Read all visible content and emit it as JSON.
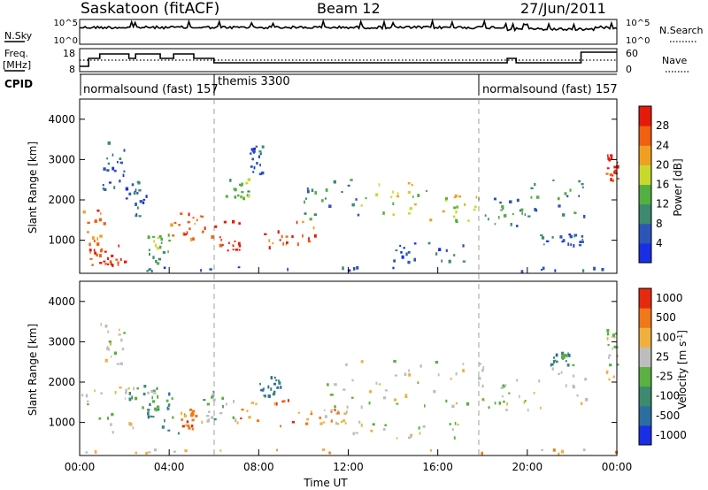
{
  "header": {
    "station": "Saskatoon (fitACF)",
    "beam": "Beam 12",
    "date": "27/Jun/2011"
  },
  "chart_data": [
    {
      "type": "line",
      "panel": "noise",
      "left_label": "N.Sky",
      "right_label": "N.Search",
      "left_ticks": [
        "10^5",
        "10^0"
      ],
      "right_ticks": [
        "10^5",
        "10^0"
      ]
    },
    {
      "type": "line",
      "panel": "frequency",
      "left_label_1": "Freq.",
      "left_label_2": "[MHz]",
      "right_label": "Nave",
      "left_ticks": [
        "18",
        "8"
      ],
      "right_ticks": [
        "60",
        "0"
      ],
      "freq_steps": [
        {
          "t": 0.0,
          "f": 10.0
        },
        {
          "t": 0.4,
          "f": 14.5
        },
        {
          "t": 0.9,
          "f": 17.0
        },
        {
          "t": 2.2,
          "f": 14.5
        },
        {
          "t": 2.5,
          "f": 17.0
        },
        {
          "t": 3.6,
          "f": 14.5
        },
        {
          "t": 4.2,
          "f": 17.0
        },
        {
          "t": 5.1,
          "f": 14.5
        },
        {
          "t": 6.0,
          "f": 12.0
        },
        {
          "t": 19.0,
          "f": 12.0
        },
        {
          "t": 19.1,
          "f": 14.5
        },
        {
          "t": 19.5,
          "f": 12.0
        },
        {
          "t": 22.3,
          "f": 12.0
        },
        {
          "t": 22.4,
          "f": 18.0
        },
        {
          "t": 24.0,
          "f": 18.0
        }
      ]
    },
    {
      "type": "table",
      "panel": "cpid",
      "label": "CPID",
      "segments": [
        {
          "start": 0.0,
          "text": "normalsound (fast) 157"
        },
        {
          "start": 6.0,
          "text": "themis 3300"
        },
        {
          "start": 18.0,
          "text": "normalsound (fast) 157"
        }
      ]
    },
    {
      "type": "heatmap",
      "panel": "power",
      "ylabel": "Slant Range [km]",
      "ylim": [
        180,
        4500
      ],
      "yticks": [
        1000,
        2000,
        3000,
        4000
      ],
      "colorbar_label": "Power [dB]",
      "colorbar_ticks": [
        "4",
        "8",
        "12",
        "16",
        "20",
        "24",
        "28"
      ],
      "colors": [
        "#1a2ee6",
        "#2c55b8",
        "#3d8a6e",
        "#53b040",
        "#c9d92c",
        "#f0a020",
        "#f06010",
        "#e61a0a"
      ],
      "blobs": [
        {
          "t0": 0.0,
          "t1": 1.2,
          "r0": 300,
          "r1": 1800,
          "lvl": 6
        },
        {
          "t0": 0.3,
          "t1": 2.2,
          "r0": 350,
          "r1": 900,
          "lvl": 7
        },
        {
          "t0": 1.0,
          "t1": 2.0,
          "r0": 2200,
          "r1": 3400,
          "lvl": 1
        },
        {
          "t0": 2.0,
          "t1": 3.0,
          "r0": 1500,
          "r1": 2500,
          "lvl": 1
        },
        {
          "t0": 3.0,
          "t1": 4.0,
          "r0": 300,
          "r1": 1200,
          "lvl": 3
        },
        {
          "t0": 4.0,
          "t1": 5.5,
          "r0": 1000,
          "r1": 1700,
          "lvl": 6
        },
        {
          "t0": 5.5,
          "t1": 7.2,
          "r0": 700,
          "r1": 1500,
          "lvl": 7
        },
        {
          "t0": 6.5,
          "t1": 7.5,
          "r0": 2000,
          "r1": 2500,
          "lvl": 3
        },
        {
          "t0": 7.5,
          "t1": 8.2,
          "r0": 2600,
          "r1": 3300,
          "lvl": 1
        },
        {
          "t0": 8.2,
          "t1": 10.5,
          "r0": 800,
          "r1": 1500,
          "lvl": 6
        },
        {
          "t0": 10.0,
          "t1": 12.5,
          "r0": 1500,
          "r1": 2500,
          "lvl": 2
        },
        {
          "t0": 12.5,
          "t1": 15.5,
          "r0": 1600,
          "r1": 2400,
          "lvl": 4
        },
        {
          "t0": 15.5,
          "t1": 18.0,
          "r0": 1400,
          "r1": 2100,
          "lvl": 4
        },
        {
          "t0": 14.0,
          "t1": 17.5,
          "r0": 400,
          "r1": 900,
          "lvl": 1
        },
        {
          "t0": 18.0,
          "t1": 20.0,
          "r0": 1300,
          "r1": 2100,
          "lvl": 2
        },
        {
          "t0": 20.0,
          "t1": 22.5,
          "r0": 1500,
          "r1": 2500,
          "lvl": 2
        },
        {
          "t0": 20.5,
          "t1": 22.5,
          "r0": 800,
          "r1": 1200,
          "lvl": 1
        },
        {
          "t0": 23.5,
          "t1": 24.0,
          "r0": 2400,
          "r1": 3100,
          "lvl": 7
        },
        {
          "t0": 0.0,
          "t1": 24.0,
          "r0": 200,
          "r1": 300,
          "lvl": 1
        }
      ]
    },
    {
      "type": "heatmap",
      "panel": "velocity",
      "ylabel": "Slant Range [km]",
      "ylim": [
        180,
        4500
      ],
      "yticks": [
        1000,
        2000,
        3000,
        4000
      ],
      "xlabel": "Time UT",
      "xticks": [
        "00:00",
        "04:00",
        "08:00",
        "12:00",
        "16:00",
        "20:00",
        "00:00"
      ],
      "colorbar_label": "Velocity [m s^-1]",
      "colorbar_ticks": [
        "1000",
        "500",
        "100",
        "25",
        "-25",
        "-100",
        "-500",
        "-1000"
      ],
      "colors": [
        "#1a2ee6",
        "#2c6ea0",
        "#3d8a6e",
        "#5ab040",
        "#bdbdbd",
        "#f0b040",
        "#f07818",
        "#e62a10"
      ],
      "blobs": [
        {
          "t0": 0.0,
          "t1": 2.5,
          "r0": 600,
          "r1": 1900,
          "lvl": 4
        },
        {
          "t0": 0.8,
          "t1": 2.0,
          "r0": 2400,
          "r1": 3500,
          "lvl": 4
        },
        {
          "t0": 2.0,
          "t1": 3.5,
          "r0": 1300,
          "r1": 1900,
          "lvl": 3
        },
        {
          "t0": 3.0,
          "t1": 4.5,
          "r0": 700,
          "r1": 1700,
          "lvl": 2
        },
        {
          "t0": 4.5,
          "t1": 5.5,
          "r0": 800,
          "r1": 1300,
          "lvl": 6
        },
        {
          "t0": 5.5,
          "t1": 7.0,
          "r0": 1000,
          "r1": 1800,
          "lvl": 3
        },
        {
          "t0": 7.0,
          "t1": 10.5,
          "r0": 800,
          "r1": 1600,
          "lvl": 6
        },
        {
          "t0": 8.0,
          "t1": 9.0,
          "r0": 1600,
          "r1": 2100,
          "lvl": 1
        },
        {
          "t0": 10.5,
          "t1": 12.0,
          "r0": 900,
          "r1": 1300,
          "lvl": 5
        },
        {
          "t0": 11.0,
          "t1": 18.0,
          "r0": 1300,
          "r1": 2500,
          "lvl": 4
        },
        {
          "t0": 12.0,
          "t1": 17.0,
          "r0": 500,
          "r1": 1000,
          "lvl": 4
        },
        {
          "t0": 18.0,
          "t1": 23.0,
          "r0": 1200,
          "r1": 2400,
          "lvl": 4
        },
        {
          "t0": 21.0,
          "t1": 22.0,
          "r0": 2400,
          "r1": 2700,
          "lvl": 2
        },
        {
          "t0": 23.5,
          "t1": 24.0,
          "r0": 2000,
          "r1": 3300,
          "lvl": 4
        },
        {
          "t0": 0.0,
          "t1": 24.0,
          "r0": 200,
          "r1": 320,
          "lvl": 5
        }
      ]
    }
  ]
}
